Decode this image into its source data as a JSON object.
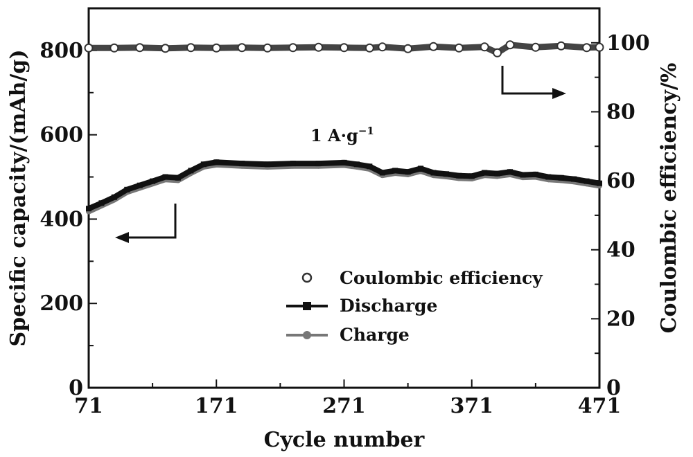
{
  "chart_data": {
    "type": "line",
    "xlabel": "Cycle number",
    "ylabel_left": "Specific capacity/(mAh/g)",
    "ylabel_right": "Coulombic efficiency/%",
    "xlim": [
      71,
      471
    ],
    "ylim_left": [
      0,
      900
    ],
    "ylim_right": [
      0,
      110
    ],
    "x_ticks": [
      71,
      171,
      271,
      371,
      471
    ],
    "y_ticks_left": [
      0,
      200,
      400,
      600,
      800
    ],
    "y_ticks_right": [
      0,
      20,
      40,
      60,
      80,
      100
    ],
    "annotation": {
      "main": "1 A·g",
      "superscript": "−1"
    },
    "legend": [
      {
        "label": "Coulombic efficiency",
        "marker": "open-circle"
      },
      {
        "label": "Discharge",
        "marker": "filled-square"
      },
      {
        "label": "Charge",
        "marker": "filled-circle"
      }
    ],
    "series": [
      {
        "name": "Coulombic efficiency",
        "axis": "right",
        "color": "#444444",
        "x": [
          71,
          91,
          111,
          131,
          151,
          171,
          191,
          211,
          231,
          251,
          271,
          291,
          301,
          321,
          341,
          361,
          381,
          391,
          401,
          421,
          441,
          461,
          471
        ],
        "y": [
          98.5,
          98.5,
          98.6,
          98.4,
          98.6,
          98.5,
          98.6,
          98.5,
          98.6,
          98.7,
          98.6,
          98.5,
          98.8,
          98.3,
          98.9,
          98.5,
          98.8,
          97.1,
          99.4,
          98.7,
          99.1,
          98.6,
          98.7
        ]
      },
      {
        "name": "Discharge",
        "axis": "left",
        "color": "#111111",
        "x": [
          71,
          81,
          91,
          101,
          111,
          121,
          131,
          141,
          151,
          161,
          171,
          191,
          211,
          231,
          251,
          271,
          281,
          291,
          301,
          311,
          321,
          331,
          341,
          351,
          361,
          371,
          381,
          391,
          401,
          411,
          421,
          431,
          441,
          451,
          461,
          471
        ],
        "y": [
          425,
          438,
          452,
          470,
          480,
          490,
          500,
          498,
          515,
          530,
          535,
          532,
          530,
          532,
          532,
          534,
          530,
          525,
          510,
          515,
          512,
          520,
          510,
          507,
          503,
          502,
          510,
          508,
          512,
          505,
          506,
          500,
          498,
          495,
          490,
          485
        ]
      },
      {
        "name": "Charge",
        "axis": "left",
        "color": "#777777",
        "x": [
          71,
          81,
          91,
          101,
          111,
          121,
          131,
          141,
          151,
          161,
          171,
          191,
          211,
          231,
          251,
          271,
          281,
          291,
          301,
          311,
          321,
          331,
          341,
          351,
          361,
          371,
          381,
          391,
          401,
          411,
          421,
          431,
          441,
          451,
          461,
          471
        ],
        "y": [
          418,
          432,
          446,
          464,
          474,
          484,
          494,
          492,
          509,
          524,
          529,
          526,
          524,
          526,
          526,
          528,
          524,
          519,
          504,
          509,
          506,
          514,
          504,
          501,
          497,
          496,
          504,
          502,
          506,
          499,
          500,
          494,
          492,
          489,
          484,
          479
        ]
      }
    ]
  }
}
